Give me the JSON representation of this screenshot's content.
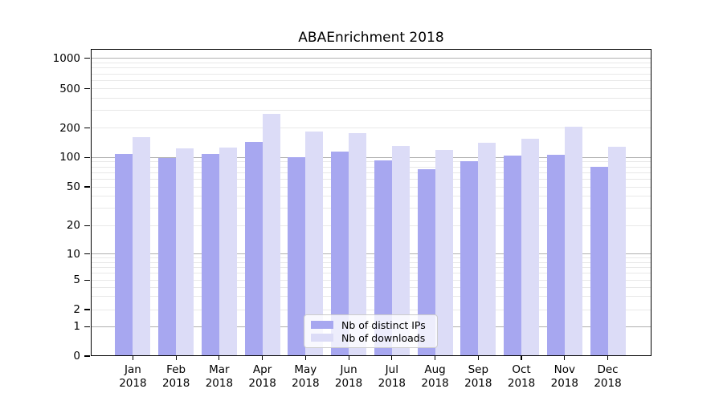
{
  "title": "ABAEnrichment 2018",
  "chart_data": {
    "type": "bar",
    "title": "ABAEnrichment 2018",
    "categories": [
      "Jan",
      "Feb",
      "Mar",
      "Apr",
      "May",
      "Jun",
      "Jul",
      "Aug",
      "Sep",
      "Oct",
      "Nov",
      "Dec"
    ],
    "x_tick_year": "2018",
    "series": [
      {
        "name": "Nb of distinct IPs",
        "color": "#a7a7f0",
        "values": [
          109,
          99,
          108,
          145,
          101,
          114,
          93,
          76,
          91,
          104,
          107,
          80
        ]
      },
      {
        "name": "Nb of downloads",
        "color": "#dcdcf7",
        "values": [
          162,
          124,
          126,
          275,
          183,
          178,
          132,
          120,
          140,
          155,
          205,
          129
        ]
      }
    ],
    "yscale": "symlog",
    "yticks": [
      0,
      1,
      2,
      5,
      10,
      20,
      50,
      100,
      200,
      500,
      1000
    ],
    "ylim": [
      0,
      1270
    ],
    "grid": true,
    "legend_position": "lower center",
    "colors": {
      "background": "#ffffff",
      "text": "#000000",
      "spine": "#000000",
      "major_grid": "#b0b0b0",
      "minor_grid": "#e8e8e8",
      "legend_border": "#cccccc",
      "legend_bg": "rgba(255,255,255,0.8)"
    }
  }
}
